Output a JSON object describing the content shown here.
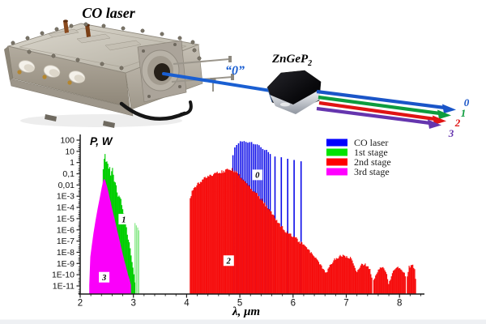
{
  "scene": {
    "device_label": "CO laser",
    "input_beam_label": "“0”",
    "crystal_label": "ZnGeP",
    "crystal_label_sub": "2",
    "beam_color": "#1a5fd2",
    "output_beams": [
      {
        "label": "0",
        "color": "#1a55c8"
      },
      {
        "label": "1",
        "color": "#0d9c3e"
      },
      {
        "label": "2",
        "color": "#e01414"
      },
      {
        "label": "3",
        "color": "#6535ae"
      }
    ]
  },
  "chart_data": {
    "type": "area",
    "title": "",
    "xlabel": "λ, μm",
    "ylabel": "P, W",
    "x_scale": "linear",
    "y_scale": "log",
    "xlim": [
      2,
      8.5
    ],
    "ylim": [
      1e-11,
      100
    ],
    "grid": false,
    "legend_position": "top-right",
    "x_ticks": [
      "2",
      "3",
      "4",
      "5",
      "6",
      "7",
      "8"
    ],
    "y_ticks": [
      "100",
      "10",
      "1",
      "0,1",
      "0,01",
      "1E-3",
      "1E-4",
      "1E-5",
      "1E-6",
      "1E-7",
      "1E-8",
      "1E-9",
      "1E-10",
      "1E-11"
    ],
    "legend": [
      {
        "label": "CO laser",
        "color": "#0000ff"
      },
      {
        "label": "1st stage",
        "color": "#00e400"
      },
      {
        "label": "2nd stage",
        "color": "#ff0000"
      },
      {
        "label": "3rd stage",
        "color": "#ff00ff"
      }
    ],
    "series": [
      {
        "name": "CO laser",
        "band": "0",
        "color": "#0a0ae8",
        "render": "comb",
        "envelope": [
          [
            4.87,
            6
          ],
          [
            4.9,
            25
          ],
          [
            4.94,
            55
          ],
          [
            4.99,
            80
          ],
          [
            5.04,
            95
          ],
          [
            5.1,
            92
          ],
          [
            5.16,
            88
          ],
          [
            5.22,
            75
          ],
          [
            5.28,
            62
          ],
          [
            5.34,
            45
          ],
          [
            5.4,
            28
          ],
          [
            5.46,
            18
          ],
          [
            5.52,
            12
          ],
          [
            5.58,
            8
          ]
        ],
        "lines": [
          [
            5.66,
            3.5
          ],
          [
            5.78,
            3.0
          ],
          [
            5.9,
            2.2
          ],
          [
            6.02,
            1.7
          ],
          [
            6.15,
            1.3
          ]
        ]
      },
      {
        "name": "2nd stage",
        "band": "2",
        "color": "#f60d0d",
        "render": "comb",
        "envelope": [
          [
            4.05,
            1e-11
          ],
          [
            4.06,
            0.0005
          ],
          [
            4.1,
            0.003
          ],
          [
            4.18,
            0.012
          ],
          [
            4.3,
            0.04
          ],
          [
            4.42,
            0.09
          ],
          [
            4.55,
            0.15
          ],
          [
            4.7,
            0.25
          ],
          [
            4.85,
            0.35
          ],
          [
            4.95,
            0.18
          ],
          [
            5.05,
            0.05
          ],
          [
            5.15,
            0.015
          ],
          [
            5.25,
            0.005
          ],
          [
            5.35,
            0.0015
          ],
          [
            5.45,
            0.0004
          ],
          [
            5.55,
            9e-05
          ],
          [
            5.65,
            2e-05
          ],
          [
            5.75,
            4e-06
          ],
          [
            5.85,
            1.2e-06
          ],
          [
            5.95,
            5e-07
          ],
          [
            6.05,
            2.5e-07
          ],
          [
            6.15,
            1e-07
          ],
          [
            6.25,
            4e-08
          ],
          [
            6.35,
            1.2e-08
          ],
          [
            6.45,
            3e-09
          ],
          [
            6.55,
            6e-10
          ],
          [
            6.62,
            1.5e-10
          ],
          [
            6.7,
            1.2e-09
          ],
          [
            6.8,
            4e-09
          ],
          [
            6.9,
            7e-09
          ],
          [
            7.0,
            7e-09
          ],
          [
            7.08,
            4e-09
          ],
          [
            7.15,
            1e-09
          ],
          [
            7.2,
            3e-10
          ],
          [
            7.28,
            1.2e-09
          ],
          [
            7.36,
            1.3e-09
          ],
          [
            7.44,
            5e-10
          ],
          [
            7.5,
            2e-11
          ],
          [
            7.56,
            2e-10
          ],
          [
            7.62,
            5e-10
          ],
          [
            7.7,
            5e-10
          ],
          [
            7.76,
            2e-10
          ],
          [
            7.8,
            2e-11
          ],
          [
            7.88,
            3e-10
          ],
          [
            7.96,
            6e-10
          ],
          [
            8.04,
            4e-10
          ],
          [
            8.1,
            1.5e-10
          ],
          [
            8.13,
            2e-11
          ],
          [
            8.17,
            6e-10
          ],
          [
            8.23,
            1.1e-09
          ],
          [
            8.28,
            6e-10
          ],
          [
            8.32,
            1e-11
          ]
        ]
      },
      {
        "name": "1st stage",
        "band": "1",
        "color": "#00ce00",
        "render": "comb",
        "envelope": [
          [
            2.415,
            0.002
          ],
          [
            2.43,
            0.3
          ],
          [
            2.445,
            2.5
          ],
          [
            2.465,
            7
          ],
          [
            2.48,
            3.5
          ],
          [
            2.493,
            1.2
          ],
          [
            2.505,
            2.6
          ],
          [
            2.52,
            1.3
          ],
          [
            2.535,
            0.45
          ],
          [
            2.55,
            0.95
          ],
          [
            2.565,
            0.25
          ],
          [
            2.578,
            0.08
          ],
          [
            2.592,
            0.3
          ],
          [
            2.607,
            0.4
          ],
          [
            2.622,
            0.11
          ],
          [
            2.637,
            0.032
          ],
          [
            2.652,
            0.011
          ],
          [
            2.667,
            0.026
          ],
          [
            2.682,
            0.008
          ],
          [
            2.7,
            0.0026
          ],
          [
            2.72,
            0.0011
          ],
          [
            2.74,
            0.0026
          ],
          [
            2.76,
            0.0008
          ],
          [
            2.782,
            0.00022
          ],
          [
            2.805,
            7e-05
          ],
          [
            2.83,
            1.8e-05
          ],
          [
            2.858,
            4e-06
          ],
          [
            2.886,
            8e-07
          ],
          [
            2.914,
            1.6e-07
          ],
          [
            2.942,
            3e-08
          ],
          [
            2.97,
            4e-09
          ],
          [
            3.0,
            4e-10
          ],
          [
            3.03,
            3e-11
          ]
        ],
        "lines": [
          [
            3.03,
            4e-06
          ],
          [
            3.055,
            2.5e-06
          ],
          [
            3.08,
            1.6e-06
          ],
          [
            3.1,
            9e-07
          ]
        ]
      },
      {
        "name": "3rd stage",
        "band": "3",
        "color": "#fa00fa",
        "render": "area",
        "envelope": [
          [
            2.17,
            1.2e-11
          ],
          [
            2.19,
            4e-09
          ],
          [
            2.22,
            5e-08
          ],
          [
            2.25,
            5e-07
          ],
          [
            2.29,
            8e-06
          ],
          [
            2.33,
            9e-05
          ],
          [
            2.37,
            0.0008
          ],
          [
            2.405,
            0.006
          ],
          [
            2.435,
            0.028
          ],
          [
            2.455,
            0.035
          ],
          [
            2.475,
            0.022
          ],
          [
            2.5,
            0.009
          ],
          [
            2.525,
            0.003
          ],
          [
            2.55,
            0.0009
          ],
          [
            2.575,
            0.00028
          ],
          [
            2.6,
            8e-05
          ],
          [
            2.63,
            2e-05
          ],
          [
            2.66,
            5e-06
          ],
          [
            2.69,
            1.2e-06
          ],
          [
            2.72,
            3e-07
          ],
          [
            2.75,
            7e-08
          ],
          [
            2.78,
            1.8e-08
          ],
          [
            2.81,
            4.5e-09
          ],
          [
            2.84,
            1.2e-09
          ],
          [
            2.87,
            3.5e-10
          ],
          [
            2.9,
            1e-10
          ],
          [
            2.93,
            3.5e-11
          ],
          [
            2.955,
            1.2e-11
          ]
        ]
      }
    ],
    "annotations": [
      {
        "label": "0",
        "x": 5.33,
        "y": 0.08
      },
      {
        "label": "1",
        "x": 2.82,
        "y": 9e-06
      },
      {
        "label": "2",
        "x": 4.79,
        "y": 1.8e-09
      },
      {
        "label": "3",
        "x": 2.45,
        "y": 6e-11
      }
    ]
  }
}
